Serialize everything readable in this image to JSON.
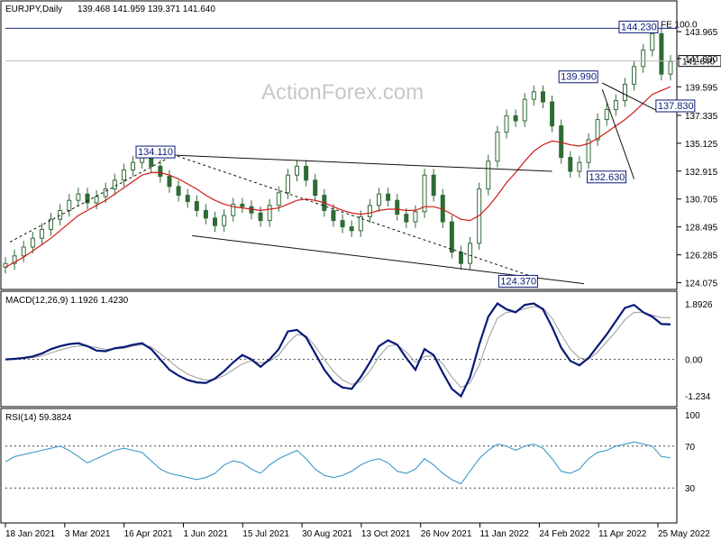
{
  "watermark": "ActionForex.com",
  "colors": {
    "price": "#2f6b35",
    "ma": "#d11a1a",
    "trendline": "#111111",
    "macd": "#0a1a78",
    "signal": "#9a9a9a",
    "rsi": "#2a8fc4",
    "label_border": "#0a1a78",
    "level_line": "#1c2a8a",
    "grid_dash": "#444444"
  },
  "chart_data": [
    {
      "type": "candlestick",
      "title": "EURJPY,Daily",
      "ohlc_header": "139.468 141.959 139.371 141.640",
      "current_price_label": "141.640",
      "ylim": [
        123.9,
        145.9
      ],
      "y_ticks": [
        "143.965",
        "141.830",
        "139.595",
        "137.335",
        "135.125",
        "132.915",
        "130.705",
        "128.495",
        "126.285",
        "124.075"
      ],
      "x_ticks": [
        "18 Jan 2021",
        "3 Mar 2021",
        "16 Apr 2021",
        "1 Jun 2021",
        "15 Jul 2021",
        "30 Aug 2021",
        "13 Oct 2021",
        "26 Nov 2021",
        "11 Jan 2022",
        "24 Feb 2022",
        "11 Apr 2022",
        "25 May 2022"
      ],
      "annotations": [
        "134.110",
        "124.370",
        "139.990",
        "137.830",
        "132.630",
        "144.230"
      ],
      "fib_label": "FE 100.0",
      "series": [
        {
          "type": "ohlc",
          "x": [
            0,
            10,
            20,
            30,
            40,
            50,
            60,
            70,
            80,
            90,
            100,
            110,
            120,
            130,
            140,
            150,
            160,
            170,
            180,
            190,
            200,
            210,
            220,
            230,
            240,
            250,
            260,
            270,
            280,
            290,
            300,
            310,
            320,
            330,
            340,
            350,
            360,
            370,
            380,
            390,
            400,
            410,
            420,
            430,
            440,
            450,
            460,
            470,
            480,
            490,
            500,
            510,
            520,
            530,
            540,
            550,
            560,
            570,
            580,
            590,
            600,
            610,
            620,
            630,
            640,
            650,
            660,
            670,
            680,
            690,
            700,
            710,
            720,
            730
          ],
          "close": [
            125.6,
            126.2,
            126.9,
            127.6,
            128.3,
            129.1,
            129.8,
            130.6,
            131.1,
            130.4,
            130.9,
            131.5,
            132.2,
            133.0,
            133.6,
            134.1,
            133.3,
            132.5,
            131.7,
            131.0,
            130.5,
            129.8,
            129.2,
            128.6,
            129.4,
            130.3,
            130.1,
            129.6,
            129.0,
            130.2,
            131.2,
            132.6,
            133.3,
            132.2,
            131.0,
            129.8,
            129.0,
            128.5,
            128.2,
            129.3,
            130.2,
            131.1,
            130.6,
            129.5,
            128.9,
            129.7,
            132.6,
            131.0,
            128.9,
            126.5,
            125.6,
            127.2,
            131.5,
            133.7,
            136.0,
            137.3,
            136.9,
            138.6,
            139.2,
            138.4,
            136.5,
            134.0,
            132.9,
            133.6,
            135.4,
            137.0,
            137.8,
            138.5,
            139.8,
            141.2,
            142.5,
            143.8,
            140.6,
            141.6
          ]
        },
        {
          "type": "sma",
          "name": "",
          "values": [
            125.3,
            125.7,
            126.1,
            126.6,
            127.1,
            127.6,
            128.2,
            128.8,
            129.4,
            129.8,
            130.2,
            130.6,
            131.1,
            131.6,
            132.1,
            132.6,
            132.8,
            132.8,
            132.6,
            132.3,
            131.9,
            131.5,
            131.0,
            130.6,
            130.3,
            130.1,
            130.0,
            129.9,
            129.8,
            129.9,
            130.0,
            130.3,
            130.6,
            130.7,
            130.6,
            130.4,
            130.1,
            129.8,
            129.6,
            129.5,
            129.6,
            129.8,
            129.9,
            129.9,
            129.8,
            129.8,
            130.1,
            130.1,
            129.9,
            129.5,
            129.1,
            129.0,
            129.4,
            130.1,
            131.0,
            132.0,
            132.8,
            133.7,
            134.5,
            135.0,
            135.3,
            135.2,
            135.0,
            134.9,
            135.1,
            135.5,
            136.0,
            136.5,
            137.0,
            137.6,
            138.3,
            139.0,
            139.3,
            139.6
          ]
        },
        {
          "type": "trendline",
          "name": "",
          "points": [
            [
              145,
              134.3
            ],
            [
              600,
              132.9
            ]
          ]
        },
        {
          "type": "trendline",
          "name": "",
          "points": [
            [
              205,
              127.8
            ],
            [
              635,
              124.0
            ]
          ]
        },
        {
          "type": "trendline",
          "name": "",
          "dashed": true,
          "points": [
            [
              5,
              127.3
            ],
            [
              185,
              134.2
            ],
            [
              585,
              124.4
            ]
          ]
        },
        {
          "type": "trendline",
          "name": "",
          "points": [
            [
              655,
              139.4
            ],
            [
              690,
              132.3
            ]
          ]
        },
        {
          "type": "trendline",
          "name": "",
          "points": [
            [
              655,
              139.9
            ],
            [
              718,
              137.6
            ]
          ]
        }
      ]
    },
    {
      "type": "line",
      "title": "MACD(12,26,9) 1.1926 1.4230",
      "ylim": [
        -1.45,
        2.1
      ],
      "y_ticks": [
        "1.8926",
        "0.00",
        "-1.234"
      ],
      "series": [
        {
          "name": "",
          "values": [
            0.0,
            0.02,
            0.05,
            0.1,
            0.2,
            0.35,
            0.45,
            0.52,
            0.55,
            0.45,
            0.3,
            0.28,
            0.38,
            0.42,
            0.5,
            0.55,
            0.35,
            0.0,
            -0.35,
            -0.55,
            -0.7,
            -0.78,
            -0.8,
            -0.65,
            -0.4,
            -0.1,
            0.15,
            0.0,
            -0.25,
            0.0,
            0.35,
            0.95,
            1.0,
            0.75,
            0.2,
            -0.35,
            -0.75,
            -0.95,
            -1.0,
            -0.6,
            -0.1,
            0.45,
            0.65,
            0.5,
            0.05,
            -0.35,
            0.35,
            0.15,
            -0.45,
            -1.0,
            -1.25,
            -0.6,
            0.5,
            1.45,
            1.9,
            1.7,
            1.6,
            1.85,
            1.9,
            1.7,
            1.1,
            0.4,
            -0.05,
            -0.2,
            0.05,
            0.45,
            0.85,
            1.3,
            1.75,
            1.85,
            1.6,
            1.45,
            1.2,
            1.19
          ]
        },
        {
          "name": "",
          "values": [
            0.0,
            0.01,
            0.03,
            0.06,
            0.12,
            0.22,
            0.32,
            0.4,
            0.46,
            0.45,
            0.4,
            0.34,
            0.35,
            0.38,
            0.45,
            0.5,
            0.42,
            0.2,
            -0.05,
            -0.3,
            -0.5,
            -0.62,
            -0.7,
            -0.68,
            -0.55,
            -0.35,
            -0.15,
            -0.05,
            -0.12,
            -0.06,
            0.15,
            0.55,
            0.85,
            0.8,
            0.45,
            0.0,
            -0.4,
            -0.7,
            -0.85,
            -0.75,
            -0.4,
            0.1,
            0.45,
            0.5,
            0.25,
            -0.1,
            0.1,
            0.12,
            -0.15,
            -0.6,
            -0.95,
            -0.8,
            -0.2,
            0.7,
            1.4,
            1.6,
            1.62,
            1.72,
            1.8,
            1.75,
            1.4,
            0.85,
            0.35,
            0.05,
            0.0,
            0.25,
            0.6,
            0.95,
            1.35,
            1.6,
            1.6,
            1.5,
            1.42,
            1.42
          ]
        }
      ]
    },
    {
      "type": "line",
      "title": "RSI(14) 59.3824",
      "ylim": [
        0,
        100
      ],
      "y_ticks": [
        "100",
        "70",
        "30"
      ],
      "series": [
        {
          "name": "",
          "values": [
            55,
            60,
            62,
            64,
            66,
            68,
            70,
            66,
            60,
            54,
            58,
            62,
            66,
            68,
            66,
            64,
            56,
            48,
            44,
            42,
            40,
            38,
            40,
            44,
            52,
            56,
            54,
            48,
            44,
            52,
            58,
            62,
            66,
            58,
            48,
            42,
            40,
            42,
            46,
            52,
            56,
            58,
            54,
            46,
            44,
            48,
            58,
            52,
            44,
            38,
            34,
            46,
            58,
            66,
            72,
            70,
            66,
            70,
            72,
            68,
            58,
            46,
            44,
            48,
            58,
            64,
            66,
            70,
            72,
            74,
            72,
            70,
            60,
            59
          ]
        }
      ]
    }
  ]
}
